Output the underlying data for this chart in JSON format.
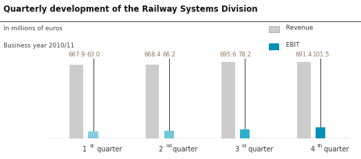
{
  "title": "Quarterly development of the Railway Systems Division",
  "subtitle_line1": "In millions of euros",
  "subtitle_line2": "Business year 2010/11",
  "quarters": [
    "1st quarter",
    "2nd quarter",
    "3rd quarter",
    "4th quarter"
  ],
  "quarter_superscripts": [
    "st",
    "nd",
    "rd",
    "th"
  ],
  "quarter_bases": [
    "1",
    "2",
    "3",
    "4"
  ],
  "revenue": [
    667.9,
    668.4,
    695.6,
    691.4
  ],
  "ebit": [
    63.0,
    66.2,
    78.2,
    101.5
  ],
  "revenue_labels": [
    "667.9",
    "668.4",
    "695.6",
    "691.4"
  ],
  "ebit_labels": [
    "63.0",
    "66.2",
    "78.2",
    "101.5"
  ],
  "revenue_color": "#cccccc",
  "ebit_colors": [
    "#7ecfdf",
    "#6ec8da",
    "#2ab0cc",
    "#0090b8"
  ],
  "line_color": "#111111",
  "value_color": "#8b7355",
  "legend_revenue_color": "#cccccc",
  "legend_ebit_color": "#0090b8",
  "rev_bar_width": 0.18,
  "ebit_bar_width": 0.13,
  "ylim_max": 780,
  "figsize": [
    5.25,
    2.31
  ],
  "dpi": 100
}
